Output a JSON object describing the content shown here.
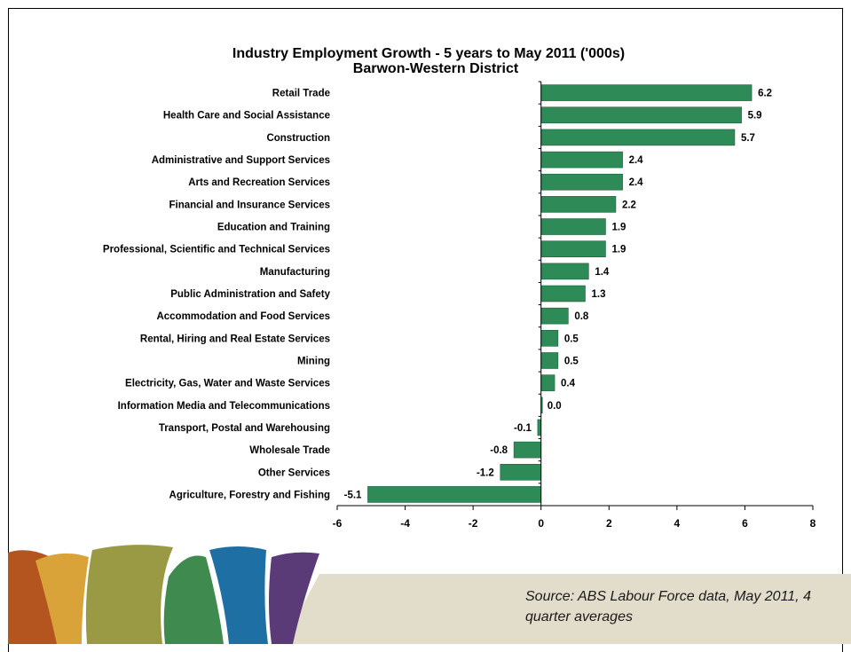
{
  "chart_data": {
    "type": "bar",
    "orientation": "horizontal",
    "title": "Industry Employment Growth - 5 years to May 2011 ('000s)",
    "subtitle": "Barwon-Western District",
    "categories": [
      "Retail Trade",
      "Health Care and Social Assistance",
      "Construction",
      "Administrative and Support Services",
      "Arts and Recreation Services",
      "Financial and Insurance Services",
      "Education and Training",
      "Professional, Scientific and Technical Services",
      "Manufacturing",
      "Public Administration and Safety",
      "Accommodation and Food Services",
      "Rental, Hiring and Real Estate Services",
      "Mining",
      "Electricity, Gas, Water and Waste Services",
      "Information Media and Telecommunications",
      "Transport, Postal and Warehousing",
      "Wholesale Trade",
      "Other Services",
      "Agriculture, Forestry and Fishing"
    ],
    "values": [
      6.2,
      5.9,
      5.7,
      2.4,
      2.4,
      2.2,
      1.9,
      1.9,
      1.4,
      1.3,
      0.8,
      0.5,
      0.5,
      0.4,
      0.0,
      -0.1,
      -0.8,
      -1.2,
      -5.1
    ],
    "value_labels": [
      "6.2",
      "5.9",
      "5.7",
      "2.4",
      "2.4",
      "2.2",
      "1.9",
      "1.9",
      "1.4",
      "1.3",
      "0.8",
      "0.5",
      "0.5",
      "0.4",
      "0.0",
      "-0.1",
      "-0.8",
      "-1.2",
      "-5.1"
    ],
    "xlim": [
      -6,
      8
    ],
    "xticks": [
      -6,
      -4,
      -2,
      0,
      2,
      4,
      6,
      8
    ],
    "xtick_labels": [
      "-6",
      "-4",
      "-2",
      "0",
      "2",
      "4",
      "6",
      "8"
    ],
    "xlabel": "",
    "ylabel": "",
    "grid": false,
    "legend": "none",
    "bar_color": "#2e8b57"
  },
  "footer": {
    "source": "Source: ABS Labour Force data, May 2011, 4 quarter averages"
  },
  "decoration": {
    "logo_colors": [
      "#b4541f",
      "#d9a33a",
      "#9a9a45",
      "#3f8a4e",
      "#1e6fa3",
      "#5b3a78"
    ],
    "band_color": "#e2dccb"
  }
}
